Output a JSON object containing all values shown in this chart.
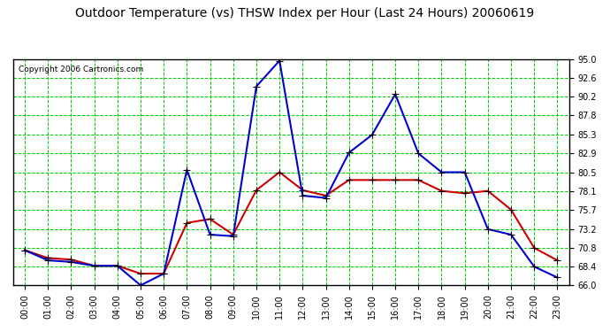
{
  "title": "Outdoor Temperature (vs) THSW Index per Hour (Last 24 Hours) 20060619",
  "copyright": "Copyright 2006 Cartronics.com",
  "hours": [
    "00:00",
    "01:00",
    "02:00",
    "03:00",
    "04:00",
    "05:00",
    "06:00",
    "07:00",
    "08:00",
    "09:00",
    "10:00",
    "11:00",
    "12:00",
    "13:00",
    "14:00",
    "15:00",
    "16:00",
    "17:00",
    "18:00",
    "19:00",
    "20:00",
    "21:00",
    "22:00",
    "23:00"
  ],
  "temp": [
    70.5,
    69.5,
    69.3,
    68.5,
    68.5,
    67.5,
    67.5,
    74.0,
    74.5,
    72.5,
    78.2,
    80.5,
    78.2,
    77.5,
    79.5,
    79.5,
    79.5,
    79.5,
    78.1,
    77.8,
    78.1,
    75.7,
    70.8,
    69.2
  ],
  "thsw": [
    70.5,
    69.2,
    69.0,
    68.5,
    68.5,
    66.0,
    67.5,
    80.8,
    72.5,
    72.3,
    91.5,
    94.8,
    77.5,
    77.2,
    83.0,
    85.3,
    90.5,
    82.9,
    80.5,
    80.5,
    73.2,
    72.5,
    68.4,
    67.0
  ],
  "temp_color": "#cc0000",
  "thsw_color": "#0000cc",
  "bg_color": "#ffffff",
  "grid_color": "#00cc00",
  "ylim_min": 66.0,
  "ylim_max": 95.0,
  "yticks": [
    66.0,
    68.4,
    70.8,
    73.2,
    75.7,
    78.1,
    80.5,
    82.9,
    85.3,
    87.8,
    90.2,
    92.6,
    95.0
  ],
  "marker": "+",
  "markersize": 6,
  "linewidth": 1.5
}
